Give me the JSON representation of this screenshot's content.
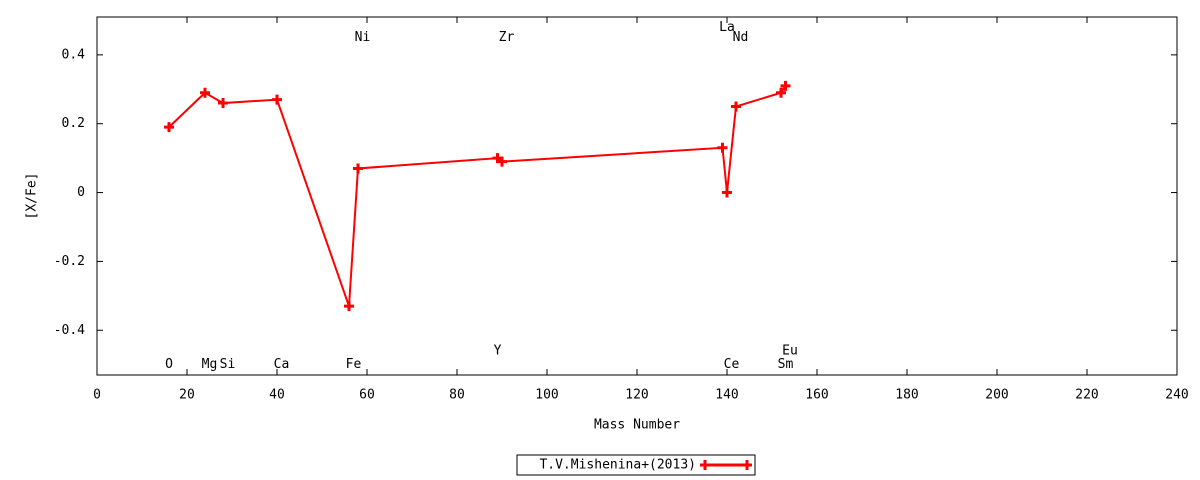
{
  "chart_data": {
    "type": "line",
    "xlabel": "Mass Number",
    "ylabel": "[X/Fe]",
    "xlim": [
      0,
      240
    ],
    "ylim": [
      -0.53,
      0.51
    ],
    "xticks": [
      0,
      20,
      40,
      60,
      80,
      100,
      120,
      140,
      160,
      180,
      200,
      220,
      240
    ],
    "yticks": [
      -0.4,
      -0.2,
      0,
      0.2,
      0.4
    ],
    "series": [
      {
        "name": "T.V.Mishenina+(2013)",
        "color": "#ff0000",
        "x": [
          16,
          24,
          28,
          40,
          56,
          58,
          89,
          90,
          139,
          140,
          142,
          152,
          153
        ],
        "values": [
          0.19,
          0.29,
          0.26,
          0.27,
          -0.33,
          0.07,
          0.1,
          0.09,
          0.13,
          0.0,
          0.25,
          0.29,
          0.31
        ]
      }
    ],
    "annotations": [
      {
        "text": "O",
        "x": 16,
        "y": -0.5
      },
      {
        "text": "Mg",
        "x": 25,
        "y": -0.5
      },
      {
        "text": "Si",
        "x": 29,
        "y": -0.5
      },
      {
        "text": "Ca",
        "x": 41,
        "y": -0.5
      },
      {
        "text": "Fe",
        "x": 57,
        "y": -0.5
      },
      {
        "text": "Ni",
        "x": 59,
        "y": 0.45
      },
      {
        "text": "Y",
        "x": 89,
        "y": -0.46
      },
      {
        "text": "Zr",
        "x": 91,
        "y": 0.45
      },
      {
        "text": "La",
        "x": 140,
        "y": 0.48
      },
      {
        "text": "Ce",
        "x": 141,
        "y": -0.5
      },
      {
        "text": "Nd",
        "x": 143,
        "y": 0.45
      },
      {
        "text": "Sm",
        "x": 153,
        "y": -0.5
      },
      {
        "text": "Eu",
        "x": 154,
        "y": -0.46
      }
    ],
    "legend": "bottom"
  }
}
